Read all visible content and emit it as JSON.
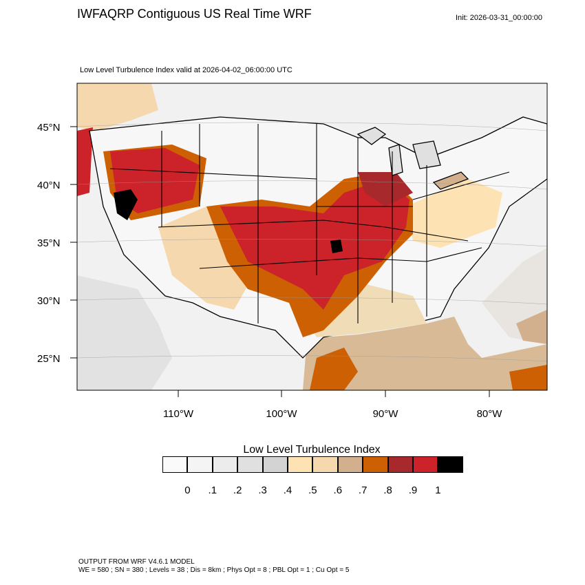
{
  "header": {
    "title": "IWFAQRP Contiguous US Real Time WRF",
    "init": "Init: 2026-03-31_00:00:00",
    "subtitle": "Low Level Turbulence Index valid at 2026-04-02_06:00:00 UTC"
  },
  "map": {
    "lat_labels": [
      "45°N",
      "40°N",
      "35°N",
      "30°N",
      "25°N"
    ],
    "lon_labels": [
      "110°W",
      "100°W",
      "90°W",
      "80°W"
    ]
  },
  "colorbar": {
    "title": "Low Level Turbulence Index",
    "colors": [
      "#fafafa",
      "#f4f4f4",
      "#ececec",
      "#e0e0e0",
      "#d3d3d3",
      "#fde2b4",
      "#f5d8ae",
      "#d3b08d",
      "#cc6002",
      "#a8292b",
      "#cc2229",
      "#000000"
    ],
    "ticks": [
      "0",
      ".1",
      ".2",
      ".3",
      ".4",
      ".5",
      ".6",
      ".7",
      ".8",
      ".9",
      "1"
    ]
  },
  "footer": {
    "line1": "OUTPUT FROM WRF V4.6.1 MODEL",
    "line2": "WE = 580 ; SN = 380 ; Levels = 38 ; Dis = 8km ; Phys Opt = 8 ; PBL Opt = 1 ; Cu Opt = 5"
  }
}
